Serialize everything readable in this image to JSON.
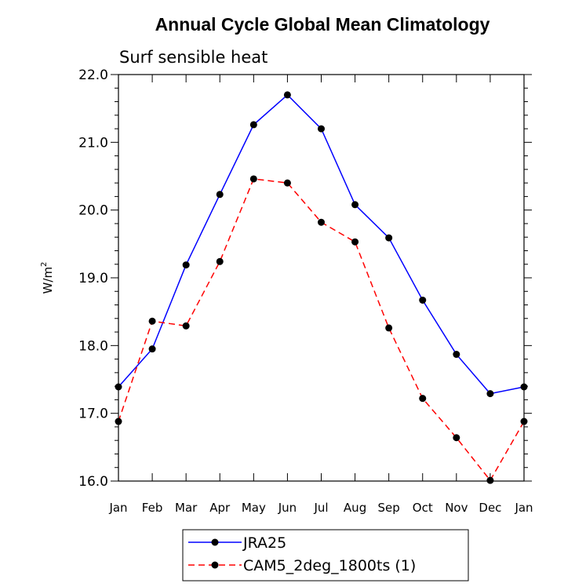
{
  "chart_data": {
    "type": "line",
    "title": "Annual Cycle Global Mean Climatology",
    "subtitle": "Surf sensible heat",
    "ylabel_base": "W/m",
    "ylabel_sup": "2",
    "categories": [
      "Jan",
      "Feb",
      "Mar",
      "Apr",
      "May",
      "Jun",
      "Jul",
      "Aug",
      "Sep",
      "Oct",
      "Nov",
      "Dec",
      "Jan"
    ],
    "ylim": [
      16.0,
      22.0
    ],
    "yticks": [
      "16.0",
      "17.0",
      "18.0",
      "19.0",
      "20.0",
      "21.0",
      "22.0"
    ],
    "grid": false,
    "legend_position": "bottom",
    "series": [
      {
        "name": "JRA25",
        "color": "#0000ff",
        "line_style": "solid",
        "marker": "filled-circle",
        "values": [
          17.39,
          17.95,
          19.19,
          20.23,
          21.26,
          21.7,
          21.2,
          20.08,
          19.59,
          18.67,
          17.87,
          17.29,
          17.39
        ]
      },
      {
        "name": "CAM5_2deg_1800ts (1)",
        "color": "#ff0000",
        "line_style": "dashed",
        "marker": "filled-circle",
        "values": [
          16.88,
          18.36,
          18.29,
          19.24,
          20.46,
          20.4,
          19.82,
          19.53,
          18.26,
          17.22,
          16.64,
          16.01,
          16.88
        ]
      }
    ]
  }
}
